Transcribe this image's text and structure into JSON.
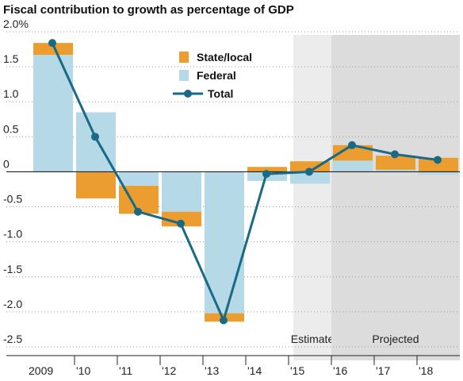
{
  "chart_data": {
    "type": "bar",
    "title": "Fiscal contribution to growth as percentage of GDP",
    "categories": [
      "2009",
      "'10",
      "'11",
      "'12",
      "'13",
      "'14",
      "'15",
      "'16",
      "'17",
      "'18"
    ],
    "series": [
      {
        "name": "Federal",
        "kind": "bar",
        "color": "#b5d9e6",
        "values": [
          1.67,
          0.85,
          -0.2,
          -0.57,
          -2.02,
          -0.13,
          -0.17,
          0.16,
          0.03,
          -0.04
        ]
      },
      {
        "name": "State/local",
        "kind": "bar",
        "color": "#eb9d2f",
        "values": [
          0.17,
          -0.38,
          -0.4,
          -0.21,
          -0.12,
          0.07,
          0.15,
          0.22,
          0.2,
          0.2
        ]
      },
      {
        "name": "Total",
        "kind": "line",
        "color": "#1a6a85",
        "values": [
          1.84,
          0.5,
          -0.57,
          -0.74,
          -2.12,
          -0.03,
          0.0,
          0.38,
          0.25,
          0.17
        ]
      }
    ],
    "y_ticks": [
      "2.0%",
      "1.5",
      "1.0",
      "0.5",
      "0",
      "-0.5",
      "-1.0",
      "-1.5",
      "-2.0",
      "-2.5"
    ],
    "ylim": [
      -2.5,
      2.0
    ],
    "legend_order": [
      "State/local",
      "Federal",
      "Total"
    ],
    "legend_position": "top-center",
    "shaded_regions": [
      {
        "label": "Estimate",
        "categories": [
          "'15"
        ],
        "color": "#ececec"
      },
      {
        "label": "Projected",
        "categories": [
          "'16",
          "'17",
          "'18"
        ],
        "color": "#dcdcdc"
      }
    ],
    "grid": "horizontal dotted",
    "xlabel": "",
    "ylabel": ""
  }
}
